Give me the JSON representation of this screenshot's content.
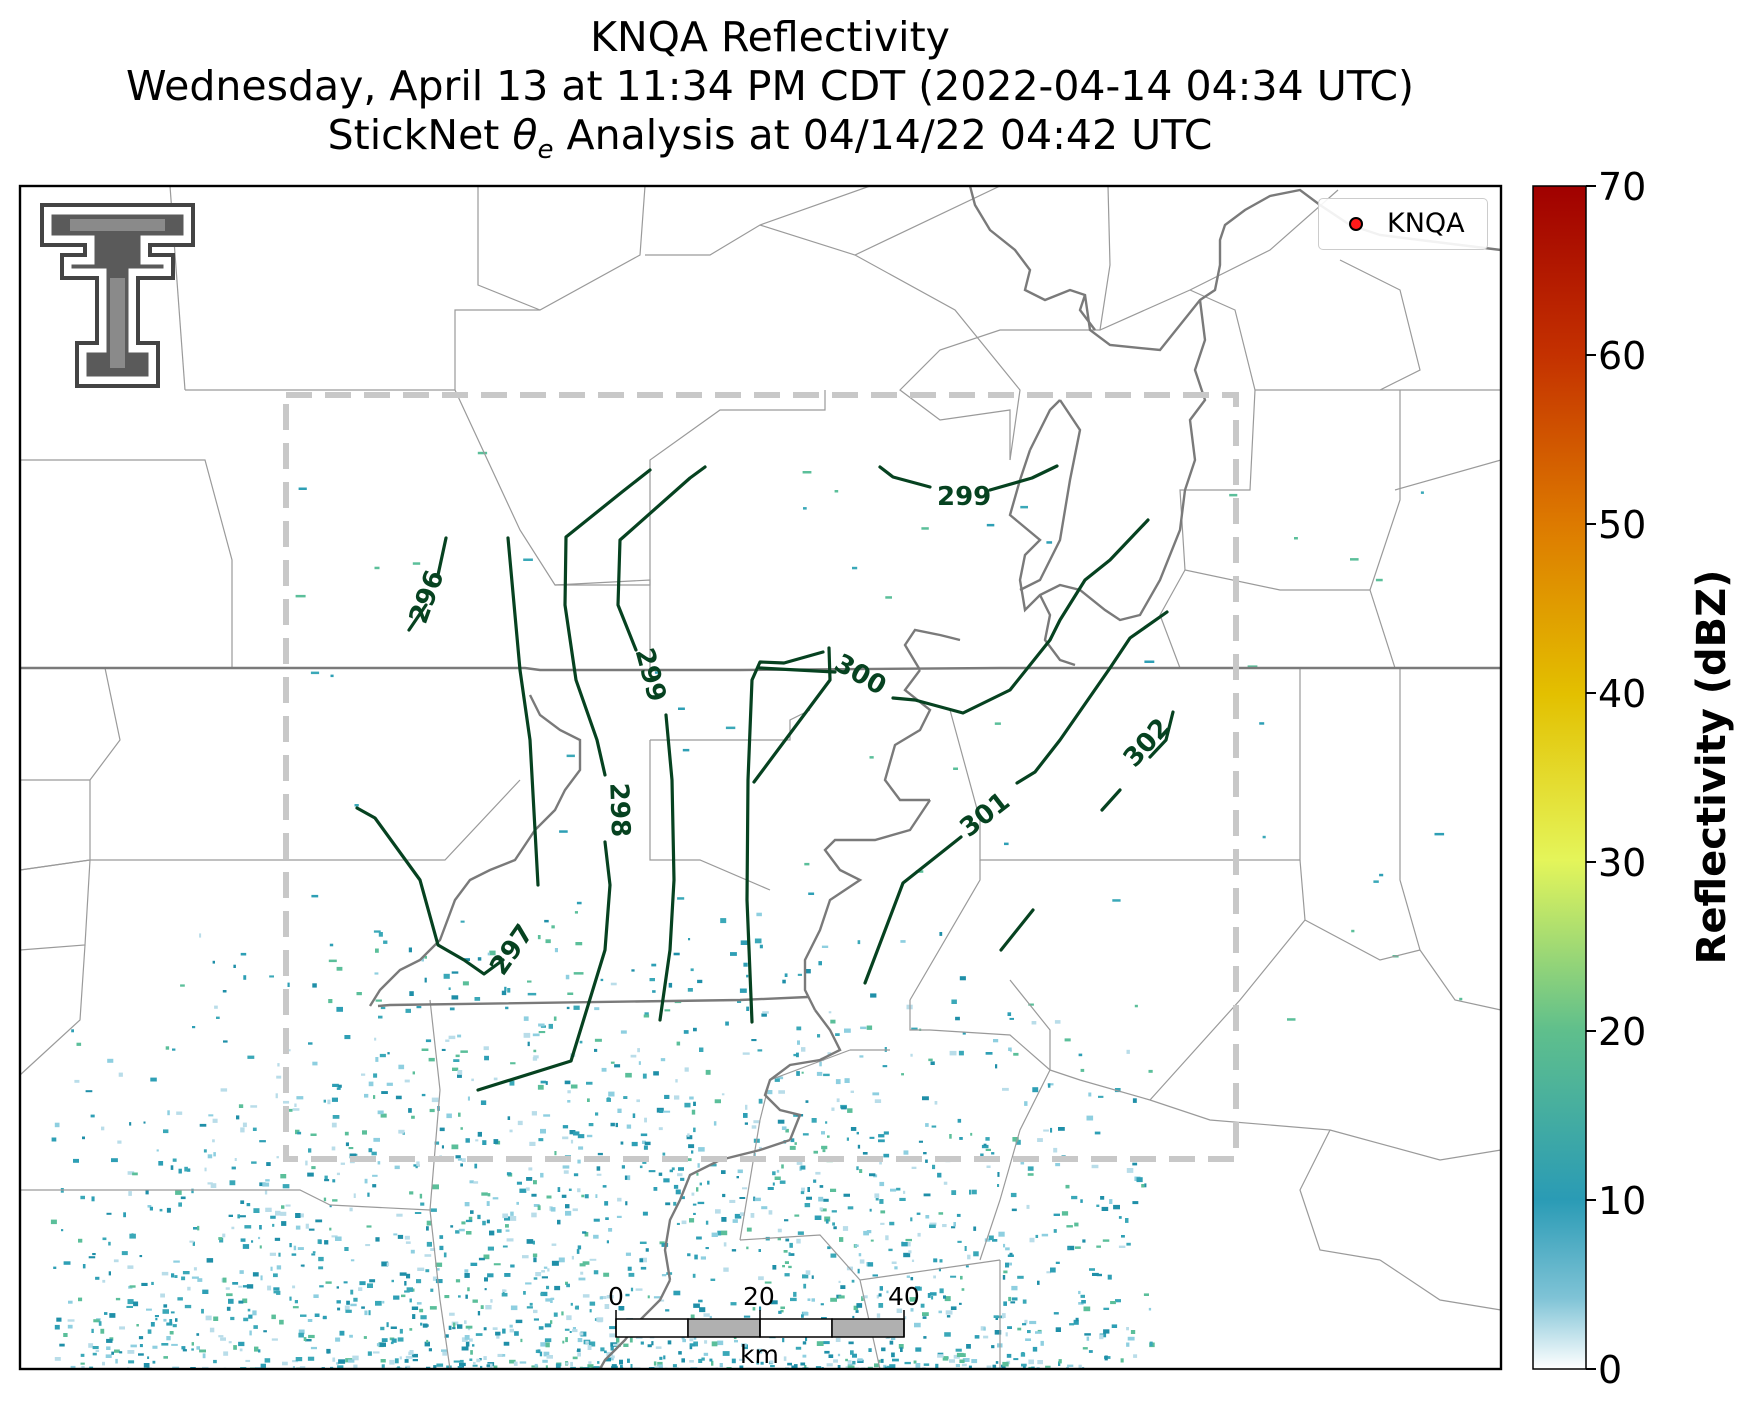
{
  "title": {
    "line1": "KNQA Reflectivity",
    "line2": "Wednesday, April 13 at 11:34 PM CDT (2022-04-14 04:34 UTC)",
    "line3": "StickNet θe Analysis at 04/14/22 04:42 UTC"
  },
  "legend": {
    "label": "KNQA",
    "marker_color": "#ff1a1a"
  },
  "colorbar": {
    "label": "Reflectivity (dBZ)",
    "ticks": [
      "0",
      "10",
      "20",
      "30",
      "40",
      "50",
      "60",
      "70"
    ],
    "colors": [
      "#ffffff",
      "#2a9bb5",
      "#62c08a",
      "#e3f55a",
      "#e0c000",
      "#e07a00",
      "#c43000",
      "#a00000"
    ]
  },
  "scale_bar": {
    "ticks": [
      "0",
      "20",
      "40"
    ],
    "unit": "km"
  },
  "contour_labels": [
    "296",
    "297",
    "298",
    "299",
    "299",
    "300",
    "301",
    "302"
  ],
  "colors": {
    "contour": "#064220",
    "box": "#c8c8c8",
    "county": "#999999",
    "state": "#7a7a7a",
    "radar": "#2e9fb5"
  },
  "logo": {
    "text": "T",
    "name": "Texas Tech double-T logo"
  }
}
